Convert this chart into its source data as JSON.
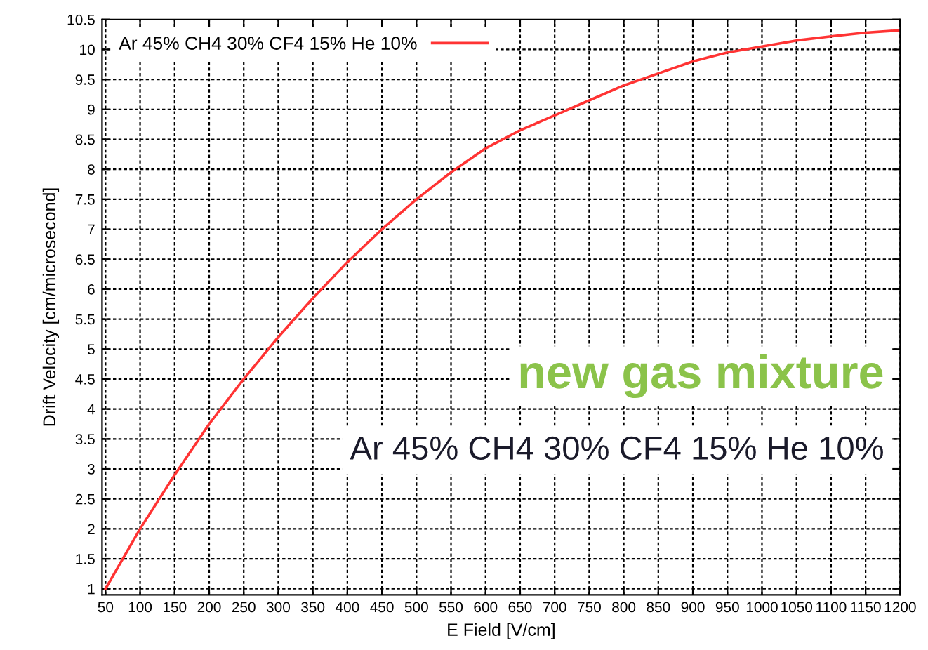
{
  "chart_data": {
    "type": "line",
    "xlabel": "E Field [V/cm]",
    "ylabel": "Drift Velocity [cm/microsecond]",
    "x": [
      50,
      100,
      150,
      200,
      250,
      300,
      350,
      400,
      450,
      500,
      550,
      600,
      650,
      700,
      750,
      800,
      850,
      900,
      950,
      1000,
      1050,
      1100,
      1150,
      1200
    ],
    "series": [
      {
        "name": "Ar 45% CH4 30% CF4 15% He 10%",
        "color": "#ff3333",
        "values": [
          1.0,
          2.0,
          2.9,
          3.75,
          4.5,
          5.2,
          5.85,
          6.45,
          7.0,
          7.5,
          7.95,
          8.35,
          8.65,
          8.9,
          9.15,
          9.4,
          9.6,
          9.8,
          9.95,
          10.05,
          10.15,
          10.22,
          10.28,
          10.32
        ]
      }
    ],
    "xlim": [
      45,
      1200
    ],
    "ylim": [
      0.9,
      10.5
    ],
    "xticks": [
      50,
      100,
      150,
      200,
      250,
      300,
      350,
      400,
      450,
      500,
      550,
      600,
      650,
      700,
      750,
      800,
      850,
      900,
      950,
      1000,
      1050,
      1100,
      1150,
      1200
    ],
    "yticks": [
      1,
      1.5,
      2,
      2.5,
      3,
      3.5,
      4,
      4.5,
      5,
      5.5,
      6,
      6.5,
      7,
      7.5,
      8,
      8.5,
      9,
      9.5,
      10,
      10.5
    ],
    "grid": true,
    "legend": "top left",
    "line_style": "solid",
    "annotations": [
      "new gas mixture",
      "Ar 45% CH4 30% CF4 15% He 10%"
    ]
  }
}
